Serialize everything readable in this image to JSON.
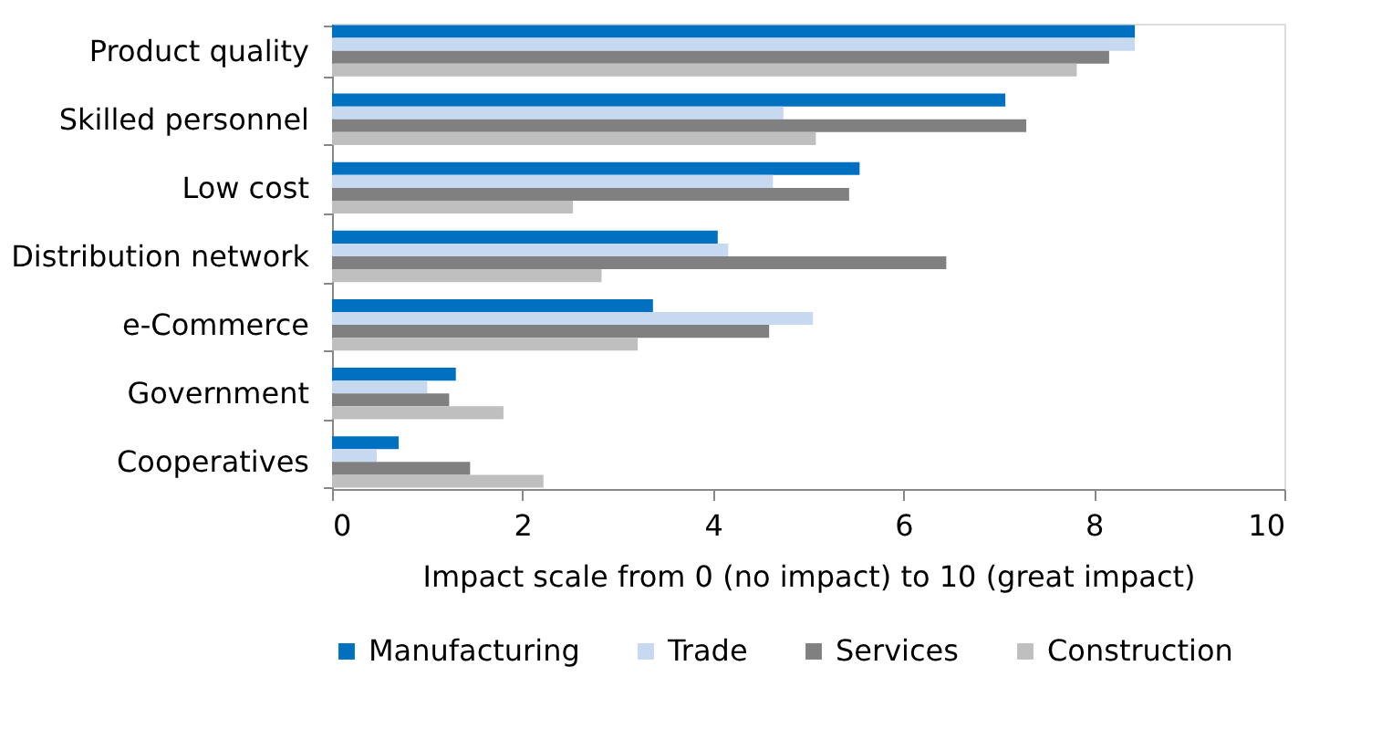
{
  "chart_data": {
    "type": "bar",
    "orientation": "horizontal",
    "xlabel": "Impact scale from 0 (no impact) to 10 (great impact)",
    "categories": [
      "Product quality",
      "Skilled personnel",
      "Low cost",
      "Distribution network",
      "e-Commerce",
      "Government",
      "Cooperatives"
    ],
    "series": [
      {
        "name": "Manufacturing",
        "color": "#0070c0",
        "values": [
          8.43,
          7.07,
          5.54,
          4.05,
          3.37,
          1.3,
          0.7
        ]
      },
      {
        "name": "Trade",
        "color": "#c6d9f1",
        "values": [
          8.43,
          4.74,
          4.63,
          4.16,
          5.05,
          1.0,
          0.47
        ]
      },
      {
        "name": "Services",
        "color": "#808080",
        "values": [
          8.16,
          7.29,
          5.43,
          6.45,
          4.59,
          1.23,
          1.45
        ]
      },
      {
        "name": "Construction",
        "color": "#bfbfbf",
        "values": [
          7.82,
          5.08,
          2.53,
          2.83,
          3.21,
          1.8,
          2.22
        ]
      }
    ],
    "xlim": [
      0,
      10
    ],
    "xticks": [
      0,
      2,
      4,
      6,
      8,
      10
    ],
    "grid": false,
    "legend": "bottom"
  }
}
